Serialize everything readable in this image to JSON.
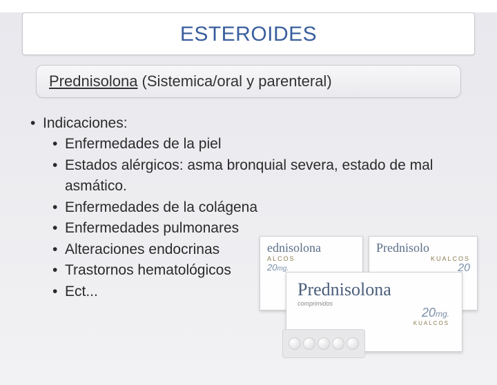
{
  "title": "ESTEROIDES",
  "subtitle": {
    "drug_name": "Prednisolona",
    "route": " (Sistemica/oral y parenteral)"
  },
  "indications_label": "Indicaciones:",
  "indications": [
    "Enfermedades de la piel",
    "Estados alérgicos: asma bronquial severa, estado de mal asmático.",
    "Enfermedades de la colágena",
    "Enfermedades pulmonares",
    "Alteraciones endocrinas",
    "Trastornos hematológicos",
    "Ect..."
  ],
  "product": {
    "brand_partial_left": "ednisolona",
    "brand_partial_right": "Prednisolo",
    "brand_full": "Prednisolona",
    "manufacturer_small": "ALCOS",
    "manufacturer_small2": "KUALCOS",
    "manufacturer_full": "KUALCOS",
    "dose_value": "20",
    "dose_unit": "mg.",
    "dose_value2": "20",
    "subtext": "comprimidos"
  },
  "colors": {
    "title_color": "#3a5f9e",
    "text_color": "#2a2a2a",
    "background_top": "#e8e8ed",
    "background_bottom": "#f2f2f4",
    "panel_bg": "#ffffff",
    "panel_border": "#c8c8cc",
    "brand_color": "#5a6e88"
  },
  "typography": {
    "title_fontsize": 30,
    "subtitle_fontsize": 22,
    "body_fontsize": 21
  }
}
